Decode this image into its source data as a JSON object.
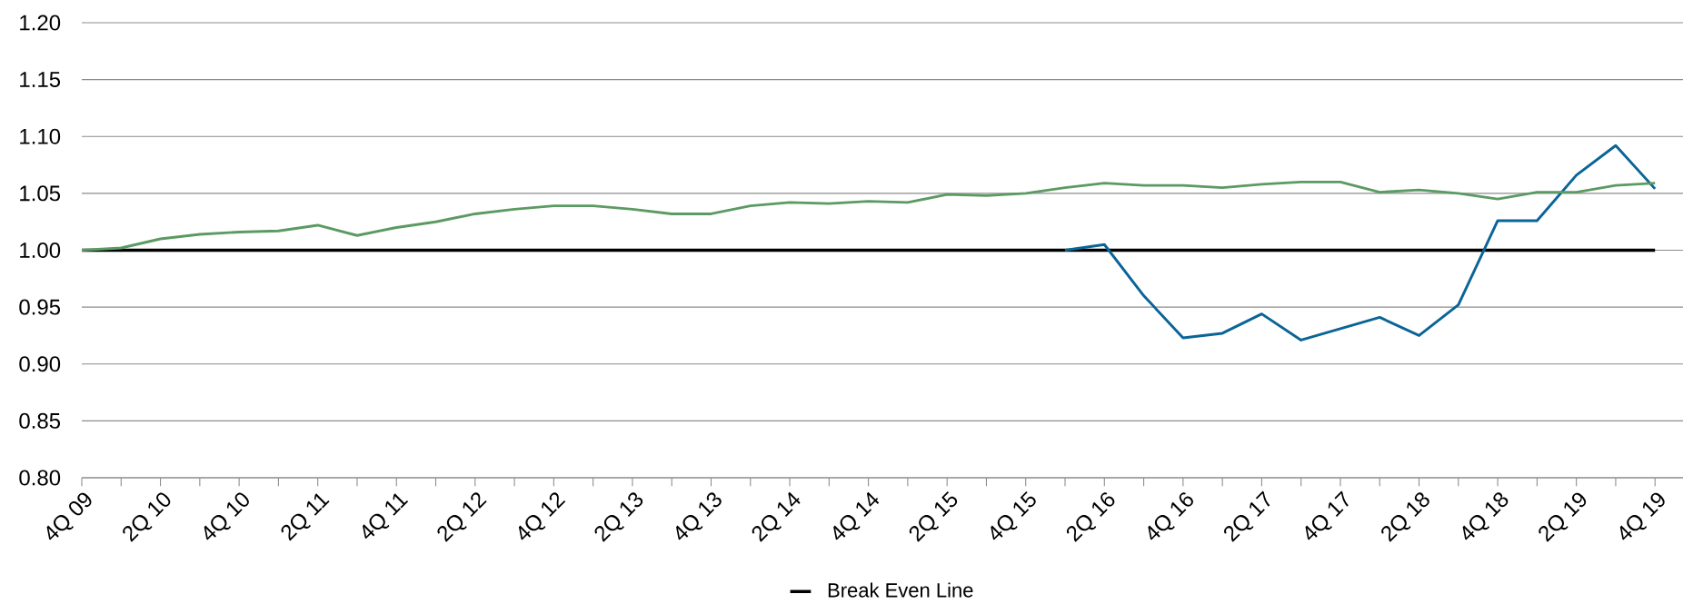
{
  "chart_data": {
    "type": "line",
    "categories": [
      "4Q 09",
      null,
      "2Q 10",
      null,
      "4Q 10",
      null,
      "2Q 11",
      null,
      "4Q 11",
      null,
      "2Q 12",
      null,
      "4Q 12",
      null,
      "2Q 13",
      null,
      "4Q 13",
      null,
      "2Q 14",
      null,
      "4Q 14",
      null,
      "2Q 15",
      null,
      "4Q 15",
      null,
      "2Q 16",
      null,
      "4Q 16",
      null,
      "2Q 17",
      null,
      "4Q 17",
      null,
      "2Q 18",
      null,
      "4Q 18",
      null,
      "2Q 19",
      null,
      "4Q 19"
    ],
    "series": [
      {
        "name": "Break Even Line",
        "color": "#000000",
        "values": [
          1,
          1,
          1,
          1,
          1,
          1,
          1,
          1,
          1,
          1,
          1,
          1,
          1,
          1,
          1,
          1,
          1,
          1,
          1,
          1,
          1,
          1,
          1,
          1,
          1,
          1,
          1,
          1,
          1,
          1,
          1,
          1,
          1,
          1,
          1,
          1,
          1,
          1,
          1,
          1,
          1
        ]
      },
      {
        "color": "#0a6496",
        "values": [
          null,
          null,
          null,
          null,
          null,
          null,
          null,
          null,
          null,
          null,
          null,
          null,
          null,
          null,
          null,
          null,
          null,
          null,
          null,
          null,
          null,
          null,
          null,
          null,
          null,
          1.0,
          1.005,
          0.96,
          0.923,
          0.927,
          0.944,
          0.921,
          0.931,
          0.941,
          0.925,
          0.952,
          1.026,
          1.026,
          1.066,
          1.092,
          1.054
        ]
      },
      {
        "color": "#5b9a62",
        "values": [
          1.0,
          1.002,
          1.01,
          1.014,
          1.016,
          1.017,
          1.022,
          1.013,
          1.02,
          1.025,
          1.032,
          1.036,
          1.039,
          1.039,
          1.036,
          1.032,
          1.032,
          1.039,
          1.042,
          1.041,
          1.043,
          1.042,
          1.049,
          1.048,
          1.05,
          1.055,
          1.059,
          1.057,
          1.057,
          1.055,
          1.058,
          1.06,
          1.06,
          1.051,
          1.053,
          1.05,
          1.045,
          1.051,
          1.051,
          1.057,
          1.059
        ]
      }
    ],
    "ylim": [
      0.8,
      1.2
    ],
    "yticks": [
      {
        "value": 0.8,
        "label": "0.80"
      },
      0.85,
      {
        "value": 0.9,
        "label": "0.90"
      },
      0.95,
      {
        "value": 1.0,
        "label": "1.00"
      },
      1.05,
      {
        "value": 1.1,
        "label": "1.10"
      },
      1.15,
      {
        "value": 1.2,
        "label": "1.20"
      }
    ],
    "grid": "y",
    "legend": "bottom",
    "marker": "none",
    "line_style": "solid"
  }
}
